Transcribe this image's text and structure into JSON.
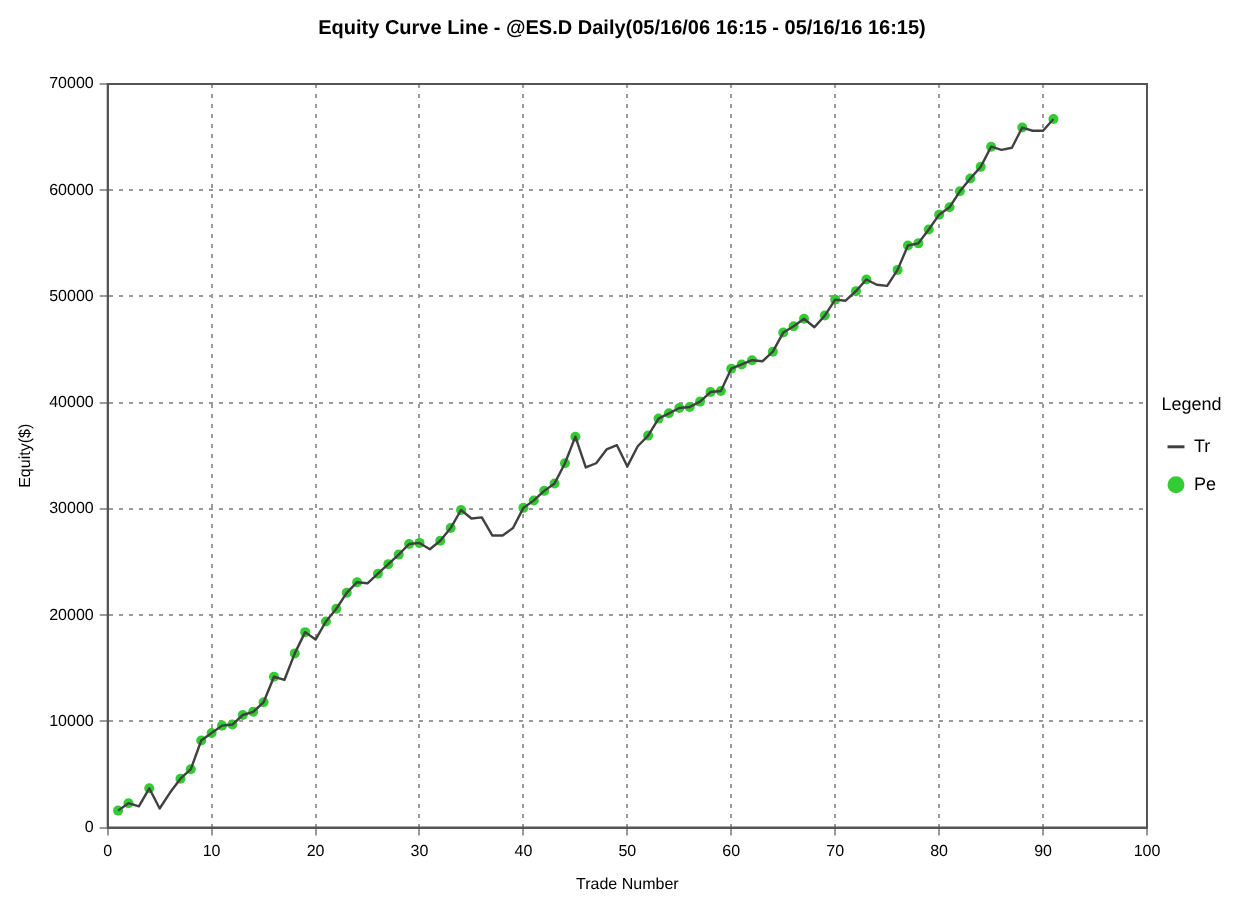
{
  "chart_data": {
    "type": "line",
    "title": "Equity Curve Line - @ES.D Daily(05/16/06 16:15 - 05/16/16 16:15)",
    "xlabel": "Trade Number",
    "ylabel": "Equity($)",
    "legend_title": "Legend",
    "legend": "right",
    "grid": true,
    "marker": "none",
    "x": [
      1,
      2,
      3,
      4,
      5,
      6,
      7,
      8,
      9,
      10,
      11,
      12,
      13,
      14,
      15,
      16,
      17,
      18,
      19,
      20,
      21,
      22,
      23,
      24,
      25,
      26,
      27,
      28,
      29,
      30,
      31,
      32,
      33,
      34,
      35,
      36,
      37,
      38,
      39,
      40,
      41,
      42,
      43,
      44,
      45,
      46,
      47,
      48,
      49,
      50,
      51,
      52,
      53,
      54,
      55,
      56,
      57,
      58,
      59,
      60,
      61,
      62,
      63,
      64,
      65,
      66,
      67,
      68,
      69,
      70,
      71,
      72,
      73,
      74,
      75,
      76,
      77,
      78,
      79,
      80,
      81,
      82,
      83,
      84,
      85,
      86,
      87,
      88,
      89,
      90,
      91
    ],
    "series": [
      {
        "name": "Tr",
        "color": "#404040",
        "values": [
          1600,
          2300,
          2000,
          3700,
          1800,
          3300,
          4600,
          5500,
          8200,
          8900,
          9600,
          9700,
          10600,
          10900,
          11800,
          14200,
          13900,
          16400,
          18400,
          17700,
          19400,
          20600,
          22100,
          23100,
          23000,
          23900,
          24800,
          25700,
          26700,
          26800,
          26200,
          27000,
          28200,
          29900,
          29100,
          29200,
          27500,
          27500,
          28200,
          30100,
          30800,
          31700,
          32400,
          34300,
          36800,
          33900,
          34300,
          35600,
          36000,
          34000,
          35900,
          36900,
          38500,
          39000,
          39500,
          39600,
          40100,
          41000,
          41100,
          43200,
          43600,
          44000,
          43900,
          44800,
          46600,
          47200,
          47900,
          47100,
          48200,
          49700,
          49600,
          50500,
          51600,
          51100,
          51000,
          52500,
          54800,
          55000,
          56300,
          57700,
          58400,
          59900,
          61100,
          62200,
          64100,
          63800,
          64000,
          65900,
          65600,
          65600,
          66700
        ]
      },
      {
        "name": "Pe",
        "type": "scatter",
        "color": "#33cc33",
        "marker": "circle",
        "values": [
          1600,
          2300,
          null,
          3700,
          null,
          null,
          4600,
          5500,
          8200,
          8900,
          9600,
          9700,
          10600,
          10900,
          11800,
          14200,
          null,
          16400,
          18400,
          null,
          19400,
          20600,
          22100,
          23100,
          null,
          23900,
          24800,
          25700,
          26700,
          26800,
          null,
          27000,
          28200,
          29900,
          null,
          null,
          null,
          null,
          null,
          30100,
          30800,
          31700,
          32400,
          34300,
          36800,
          null,
          null,
          null,
          null,
          null,
          null,
          36900,
          38500,
          39000,
          39500,
          39600,
          40100,
          41000,
          41100,
          43200,
          43600,
          44000,
          null,
          44800,
          46600,
          47200,
          47900,
          null,
          48200,
          49700,
          null,
          50500,
          51600,
          null,
          null,
          52500,
          54800,
          55000,
          56300,
          57700,
          58400,
          59900,
          61100,
          62200,
          64100,
          null,
          null,
          65900,
          null,
          null,
          66700
        ]
      }
    ],
    "xlim": [
      0,
      100
    ],
    "xticks": [
      0,
      10,
      20,
      30,
      40,
      50,
      60,
      70,
      80,
      90,
      100
    ],
    "ylim": [
      0,
      70000
    ],
    "yticks": [
      0,
      10000,
      20000,
      30000,
      40000,
      50000,
      60000,
      70000
    ]
  }
}
